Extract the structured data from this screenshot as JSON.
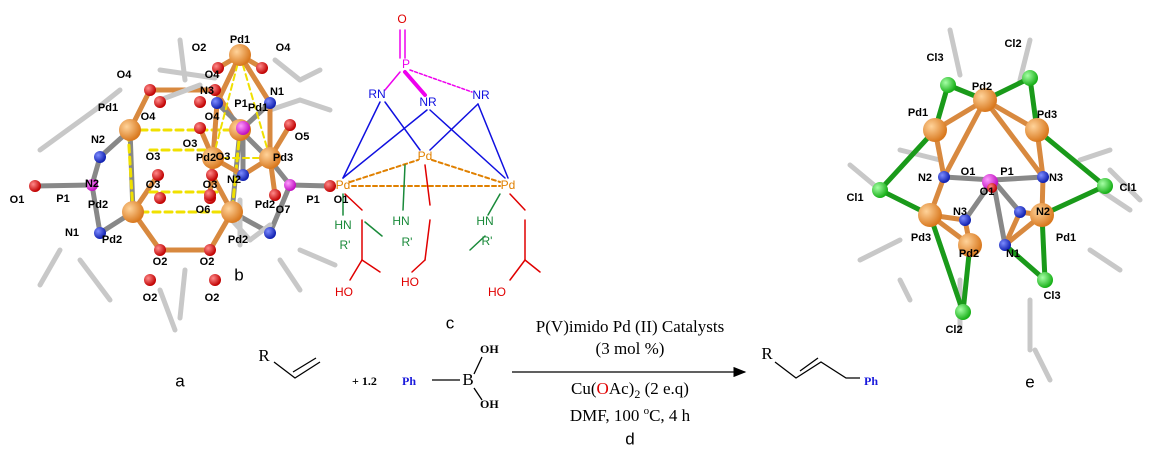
{
  "structures": {
    "a": {
      "label": "a",
      "atoms": [
        "Pd1",
        "O4",
        "O4",
        "Pd1",
        "O4",
        "O4",
        "N2",
        "O3",
        "O3",
        "N2",
        "O3",
        "O3",
        "Pd2",
        "P1",
        "O1",
        "Pd2",
        "P1",
        "O1",
        "N1",
        "Pd2",
        "Pd2",
        "O2",
        "O2",
        "O2",
        "O2"
      ]
    },
    "b": {
      "label": "b",
      "atoms": [
        "O2",
        "Pd1",
        "O4",
        "N3",
        "P1",
        "N1",
        "O3",
        "Pd2",
        "O5",
        "Pd3",
        "N2",
        "O6",
        "O7"
      ]
    },
    "c": {
      "label": "c",
      "atoms": [
        "O",
        "P",
        "RN",
        "NR",
        "NR",
        "Pd",
        "Pd",
        "Pd",
        "HN",
        "R'",
        "HN",
        "R'",
        "HN",
        "R'",
        "HO",
        "HO",
        "HO"
      ]
    },
    "e": {
      "label": "e",
      "atoms": [
        "Cl3",
        "Cl2",
        "Pd2",
        "Pd1",
        "Pd3",
        "O1",
        "P1",
        "N2",
        "N3",
        "Cl1",
        "Cl1",
        "O1",
        "N3",
        "N2",
        "Pd3",
        "Pd1",
        "Pd2",
        "N1",
        "Cl3",
        "Cl2"
      ]
    }
  },
  "reaction": {
    "reactant_r": "R",
    "equiv": "+ 1.2",
    "phenyl": "Ph",
    "boron": "B",
    "hydroxyls": [
      "OH",
      "OH"
    ],
    "conditions_above": [
      "P(V)imido Pd (II) Catalysts",
      "(3 mol %)"
    ],
    "reagent": {
      "prefix": "Cu(",
      "oxygen": "O",
      "suffix": "Ac)",
      "subscript": "2",
      "amount": " (2 e.q)"
    },
    "solvent": {
      "text": "DMF, 100 ",
      "superscript": "o",
      "unit": "C, 4 h"
    },
    "product_r": "R",
    "product_phenyl": "Ph",
    "label": "d"
  }
}
